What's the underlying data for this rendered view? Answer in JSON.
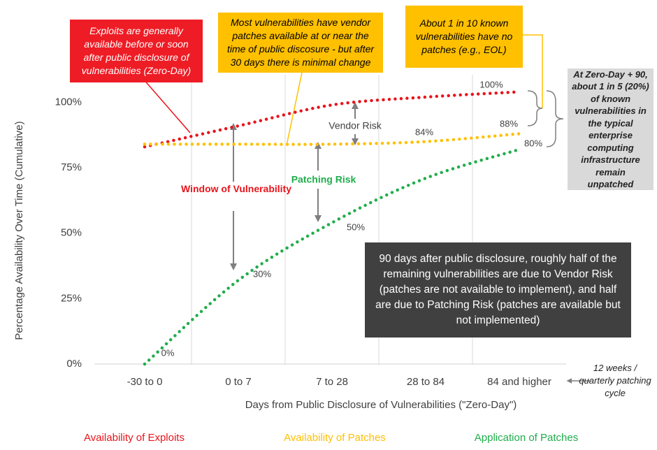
{
  "chart_data": {
    "type": "line",
    "x_label": "Days from Public Disclosure of Vulnerabilities (\"Zero-Day\")",
    "y_label": "Percentage Availability Over Time (Cumulative)",
    "categories": [
      "-30 to 0",
      "0 to 7",
      "7 to 28",
      "28 to 84",
      "84 and higher"
    ],
    "series": [
      {
        "name": "Availability of Exploits",
        "color": "#e8141b",
        "values": [
          83,
          91,
          99,
          102,
          104
        ]
      },
      {
        "name": "Availability of Patches",
        "color": "#ffc000",
        "values": [
          84,
          84,
          84,
          85,
          88
        ]
      },
      {
        "name": "Application of Patches",
        "color": "#1fad4b",
        "values": [
          0,
          32,
          54,
          71,
          82
        ]
      }
    ],
    "ylim": [
      0,
      110
    ],
    "yticks": [
      {
        "value": 0,
        "label": "0%"
      },
      {
        "value": 25,
        "label": "25%"
      },
      {
        "value": 50,
        "label": "50%"
      },
      {
        "value": 75,
        "label": "75%"
      },
      {
        "value": 100,
        "label": "100%"
      }
    ],
    "annotations": {
      "exploits_box": "Exploits are generally available before or soon after public disclosure of vulnerabilities (Zero-Day)",
      "patches_box": "Most vulnerabilities have vendor patches available at or near the time of public discosure - but after 30 days there is minimal change",
      "eol_box": "About 1 in 10 known vulnerabilities have no patches (e.g., EOL)",
      "unpatched_box": "At Zero-Day + 90, about 1 in 5 (20%) of known vulnerabilities in the typical enterprise computing infrastructure remain unpatched",
      "summary_box": "90 days after public disclosure, roughly half of the remaining vulnerabilities are due to Vendor Risk (patches are not available to implement), and half are due to Patching Risk (patches are available but not implemented)",
      "window": "Window of Vulnerability",
      "patching_risk": "Patching Risk",
      "vendor_risk": "Vendor Risk",
      "cycle_note": "12 weeks / quarterly patching cycle",
      "curve_labels": [
        "100%",
        "88%",
        "84%",
        "80%",
        "50%",
        "30%",
        "0%"
      ]
    }
  }
}
